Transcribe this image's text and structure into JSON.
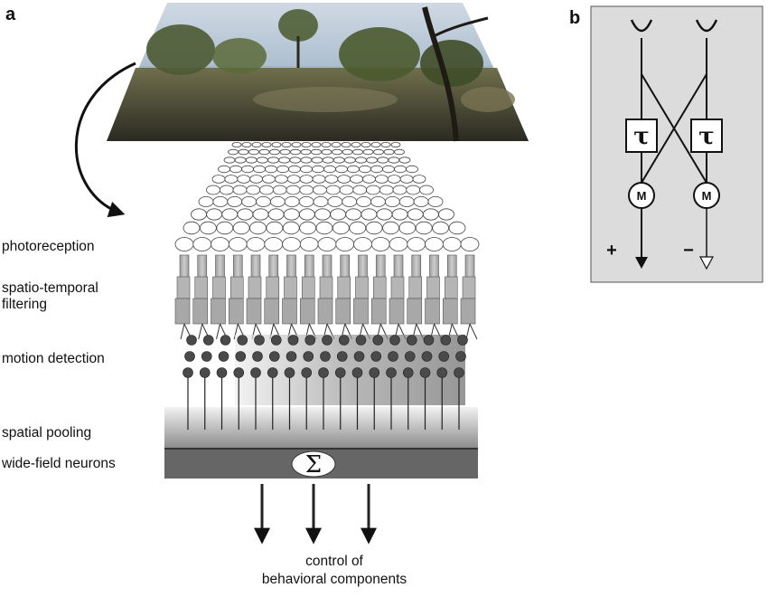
{
  "panels": {
    "a": {
      "label": "a"
    },
    "b": {
      "label": "b"
    }
  },
  "stages": {
    "photoreception": "photoreception",
    "filtering_line1": "spatio-temporal",
    "filtering_line2": "filtering",
    "motion_detection": "motion detection",
    "spatial_pooling": "spatial pooling",
    "wide_field": "wide-field neurons"
  },
  "integrator_symbol": "Σ",
  "output": {
    "line1": "control of",
    "line2": "behavioral components"
  },
  "detector": {
    "delay_symbol": "τ",
    "multiplier_symbol": "M",
    "positive_output": "+",
    "negative_output": "−"
  },
  "icons": {
    "scene": "natural-scene-photo",
    "arrow": "curved-arrow-icon",
    "photoreceptor": "ellipse-icon",
    "filter": "rectangle-icon",
    "detector_unit": "dot-icon"
  },
  "colors": {
    "panel_b_bg": "#dcdcdc",
    "ink": "#111111",
    "receptor_fill": "#ffffff",
    "filter_fill": "#b0b0b0",
    "detector_fill": "#555555",
    "pooling_top": "#e8e8e8",
    "wide_field_fill": "#666666"
  }
}
